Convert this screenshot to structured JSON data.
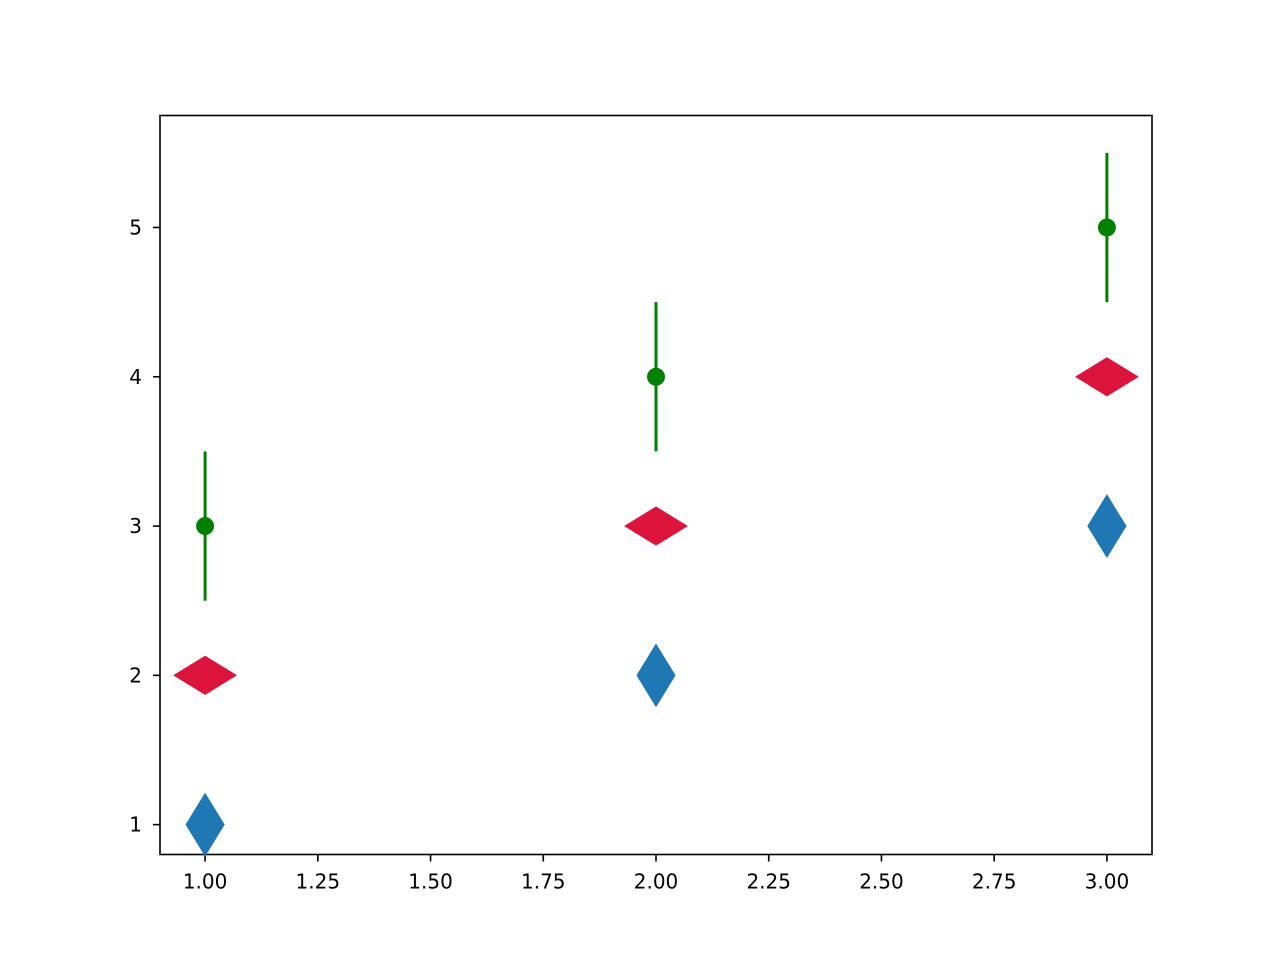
{
  "chart_data": {
    "type": "scatter",
    "title": "",
    "xlabel": "",
    "ylabel": "",
    "xlim": [
      0.9,
      3.1
    ],
    "ylim": [
      0.8,
      5.75
    ],
    "grid": false,
    "legend": "none",
    "x_ticks": [
      {
        "value": 1.0,
        "label": "1.00"
      },
      {
        "value": 1.25,
        "label": "1.25"
      },
      {
        "value": 1.5,
        "label": "1.50"
      },
      {
        "value": 1.75,
        "label": "1.75"
      },
      {
        "value": 2.0,
        "label": "2.00"
      },
      {
        "value": 2.25,
        "label": "2.25"
      },
      {
        "value": 2.5,
        "label": "2.50"
      },
      {
        "value": 2.75,
        "label": "2.75"
      },
      {
        "value": 3.0,
        "label": "3.00"
      }
    ],
    "y_ticks": [
      {
        "value": 1,
        "label": "1"
      },
      {
        "value": 2,
        "label": "2"
      },
      {
        "value": 3,
        "label": "3"
      },
      {
        "value": 4,
        "label": "4"
      },
      {
        "value": 5,
        "label": "5"
      }
    ],
    "series": [
      {
        "marker": "thin-diamond",
        "color": "#1f77b4",
        "x": [
          1,
          2,
          3
        ],
        "y": [
          1,
          2,
          3
        ]
      },
      {
        "marker": "wide-diamond",
        "color": "#dc143c",
        "x": [
          1,
          2,
          3
        ],
        "y": [
          2,
          3,
          4
        ]
      },
      {
        "marker": "circle",
        "color": "#008000",
        "x": [
          1,
          2,
          3
        ],
        "y": [
          3,
          4,
          5
        ],
        "yerr": [
          0.5,
          0.5,
          0.5
        ]
      }
    ]
  }
}
